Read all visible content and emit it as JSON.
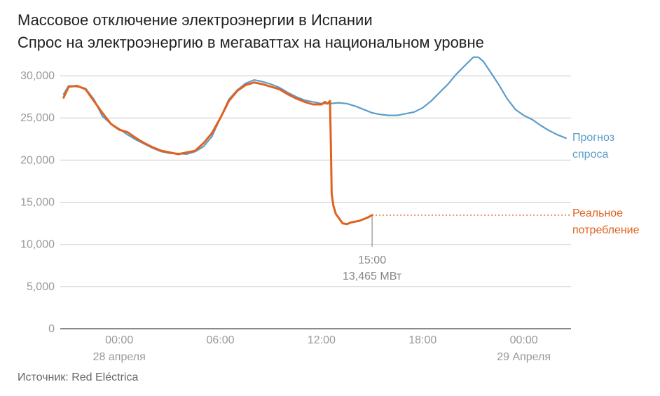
{
  "title": "Массовое отключение электроэнергии в Испании",
  "subtitle": "Спрос на электроэнергию в мегаваттах на национальном уровне",
  "source": "Источник: Red Eléctrica",
  "colors": {
    "forecast": "#5b9dc9",
    "actual": "#e1611f",
    "grid": "#cccccc",
    "axis_text": "#999999"
  },
  "chart_data": {
    "type": "line",
    "title": "Массовое отключение электроэнергии в Испании",
    "subtitle": "Спрос на электроэнергию в мегаваттах на национальном уровне",
    "xlabel": "",
    "ylabel": "",
    "x_unit": "hours from 00:00, 28 апреля",
    "xlim": [
      -3.5,
      26.8
    ],
    "ylim": [
      0,
      32000
    ],
    "y_ticks": [
      0,
      5000,
      10000,
      15000,
      20000,
      25000,
      30000
    ],
    "y_tick_labels": [
      "0",
      "5,000",
      "10,000",
      "15,000",
      "20,000",
      "25,000",
      "30,000"
    ],
    "x_ticks": [
      0,
      6,
      12,
      18,
      24
    ],
    "x_tick_labels": [
      "00:00",
      "06:00",
      "12:00",
      "18:00",
      "00:00"
    ],
    "x_date_labels": [
      {
        "x": 0,
        "label": "28 апреля"
      },
      {
        "x": 24,
        "label": "29 Апреля"
      }
    ],
    "grid": true,
    "series": [
      {
        "name": "Прогноз спроса",
        "color": "#5b9dc9",
        "x": [
          -3.3,
          -3.0,
          -2.5,
          -2.0,
          -1.5,
          -1.0,
          -0.5,
          0.0,
          0.5,
          1.0,
          1.5,
          2.0,
          2.5,
          3.0,
          3.5,
          4.0,
          4.5,
          5.0,
          5.5,
          6.0,
          6.5,
          7.0,
          7.5,
          8.0,
          8.5,
          9.0,
          9.5,
          10.0,
          10.5,
          11.0,
          11.5,
          12.0,
          12.5,
          13.0,
          13.5,
          14.0,
          14.5,
          15.0,
          15.5,
          16.0,
          16.5,
          17.0,
          17.5,
          18.0,
          18.5,
          19.0,
          19.5,
          20.0,
          20.5,
          21.0,
          21.3,
          21.6,
          22.0,
          22.5,
          23.0,
          23.5,
          24.0,
          24.5,
          25.0,
          25.5,
          26.0,
          26.5
        ],
        "y": [
          27800,
          28800,
          28700,
          28500,
          27200,
          25200,
          24300,
          23700,
          23000,
          22400,
          21900,
          21400,
          21000,
          20800,
          20800,
          20700,
          21000,
          21600,
          22800,
          25000,
          27200,
          28300,
          29100,
          29500,
          29300,
          29000,
          28600,
          28000,
          27500,
          27100,
          26900,
          26700,
          26700,
          26800,
          26700,
          26400,
          26000,
          25600,
          25400,
          25300,
          25300,
          25500,
          25700,
          26200,
          27000,
          28000,
          29000,
          30200,
          31200,
          32200,
          32200,
          31700,
          30500,
          29000,
          27300,
          26000,
          25300,
          24800,
          24100,
          23500,
          23000,
          22600
        ]
      },
      {
        "name": "Реальное потребление",
        "color": "#e1611f",
        "x": [
          -3.3,
          -3.0,
          -2.5,
          -2.0,
          -1.5,
          -1.0,
          -0.5,
          0.0,
          0.5,
          1.0,
          1.5,
          2.0,
          2.5,
          3.0,
          3.5,
          4.0,
          4.5,
          5.0,
          5.5,
          6.0,
          6.5,
          7.0,
          7.5,
          8.0,
          8.5,
          9.0,
          9.5,
          10.0,
          10.5,
          11.0,
          11.5,
          12.0,
          12.2,
          12.35,
          12.5,
          12.55,
          12.6,
          12.7,
          12.85,
          13.0,
          13.25,
          13.5,
          13.75,
          14.0,
          14.25,
          14.5,
          14.75,
          15.0
        ],
        "y": [
          27400,
          28700,
          28800,
          28400,
          27000,
          25600,
          24300,
          23600,
          23300,
          22600,
          22000,
          21500,
          21100,
          20900,
          20700,
          20900,
          21100,
          22000,
          23200,
          25000,
          27000,
          28200,
          28900,
          29200,
          29000,
          28700,
          28400,
          27800,
          27300,
          26900,
          26600,
          26600,
          26900,
          26700,
          27000,
          22000,
          16000,
          14600,
          13600,
          13200,
          12500,
          12400,
          12600,
          12700,
          12800,
          13000,
          13200,
          13465
        ]
      }
    ],
    "series_labels": [
      {
        "series": "Прогноз спроса",
        "lines": [
          "Прогноз",
          "спроса"
        ]
      },
      {
        "series": "Реальное потребление",
        "lines": [
          "Реальное",
          "потребление"
        ]
      }
    ],
    "reference_line": {
      "series": "Реальное потребление",
      "y": 13465,
      "from_x": 15.0,
      "style": "dotted"
    },
    "annotation": {
      "x": 15.0,
      "y": 13465,
      "time": "15:00",
      "value": "13,465 МВт"
    }
  }
}
